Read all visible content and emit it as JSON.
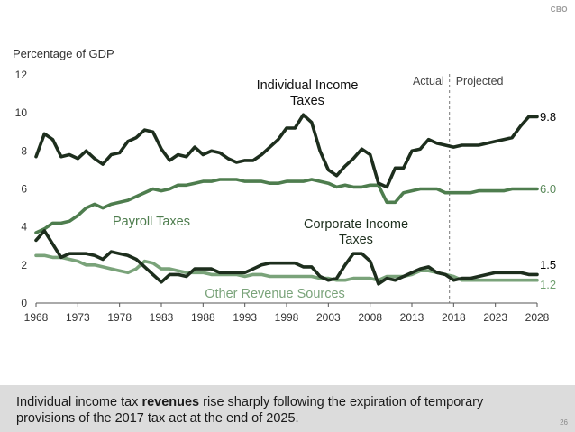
{
  "logo": "CBO",
  "page_number": "26",
  "caption": {
    "before": "Individual income tax ",
    "bold": "revenues",
    "after": " rise sharply following the expiration of temporary provisions of the 2017 tax act at the end of 2025."
  },
  "chart_data": {
    "type": "line",
    "ylabel": "Percentage of GDP",
    "xlim": [
      1968,
      2028
    ],
    "ylim": [
      0,
      12
    ],
    "yticks": [
      0,
      2,
      4,
      6,
      8,
      10,
      12
    ],
    "xticks": [
      1968,
      1973,
      1978,
      1983,
      1988,
      1993,
      1998,
      2003,
      2008,
      2013,
      2018,
      2023,
      2028
    ],
    "divider": {
      "year": 2017.5,
      "left_label": "Actual",
      "right_label": "Projected"
    },
    "x": [
      1968,
      1969,
      1970,
      1971,
      1972,
      1973,
      1974,
      1975,
      1976,
      1977,
      1978,
      1979,
      1980,
      1981,
      1982,
      1983,
      1984,
      1985,
      1986,
      1987,
      1988,
      1989,
      1990,
      1991,
      1992,
      1993,
      1994,
      1995,
      1996,
      1997,
      1998,
      1999,
      2000,
      2001,
      2002,
      2003,
      2004,
      2005,
      2006,
      2007,
      2008,
      2009,
      2010,
      2011,
      2012,
      2013,
      2014,
      2015,
      2016,
      2017,
      2018,
      2019,
      2020,
      2021,
      2022,
      2023,
      2024,
      2025,
      2026,
      2027,
      2028
    ],
    "series": [
      {
        "name": "Individual Income Taxes",
        "label_lines": [
          "Individual Income",
          "Taxes"
        ],
        "end_label": "9.8",
        "color": "#1d2e1d",
        "values": [
          7.7,
          8.9,
          8.6,
          7.7,
          7.8,
          7.6,
          8.0,
          7.6,
          7.3,
          7.8,
          7.9,
          8.5,
          8.7,
          9.1,
          9.0,
          8.1,
          7.5,
          7.8,
          7.7,
          8.2,
          7.8,
          8.0,
          7.9,
          7.6,
          7.4,
          7.5,
          7.5,
          7.8,
          8.2,
          8.6,
          9.2,
          9.2,
          9.9,
          9.5,
          8.0,
          7.0,
          6.7,
          7.2,
          7.6,
          8.1,
          7.8,
          6.3,
          6.1,
          7.1,
          7.1,
          8.0,
          8.1,
          8.6,
          8.4,
          8.3,
          8.2,
          8.3,
          8.3,
          8.3,
          8.4,
          8.5,
          8.6,
          8.7,
          9.3,
          9.8,
          9.8
        ]
      },
      {
        "name": "Payroll Taxes",
        "label_lines": [
          "Payroll Taxes"
        ],
        "end_label": "6.0",
        "color": "#4e7d4e",
        "values": [
          3.7,
          3.9,
          4.2,
          4.2,
          4.3,
          4.6,
          5.0,
          5.2,
          5.0,
          5.2,
          5.3,
          5.4,
          5.6,
          5.8,
          6.0,
          5.9,
          6.0,
          6.2,
          6.2,
          6.3,
          6.4,
          6.4,
          6.5,
          6.5,
          6.5,
          6.4,
          6.4,
          6.4,
          6.3,
          6.3,
          6.4,
          6.4,
          6.4,
          6.5,
          6.4,
          6.3,
          6.1,
          6.2,
          6.1,
          6.1,
          6.2,
          6.2,
          5.3,
          5.3,
          5.8,
          5.9,
          6.0,
          6.0,
          6.0,
          5.8,
          5.8,
          5.8,
          5.8,
          5.9,
          5.9,
          5.9,
          5.9,
          6.0,
          6.0,
          6.0,
          6.0
        ]
      },
      {
        "name": "Corporate Income Taxes",
        "label_lines": [
          "Corporate Income",
          "Taxes"
        ],
        "end_label": "1.5",
        "color": "#1d2e1d",
        "values": [
          3.3,
          3.8,
          3.1,
          2.4,
          2.6,
          2.6,
          2.6,
          2.5,
          2.3,
          2.7,
          2.6,
          2.5,
          2.3,
          1.9,
          1.5,
          1.1,
          1.5,
          1.5,
          1.4,
          1.8,
          1.8,
          1.8,
          1.6,
          1.6,
          1.6,
          1.6,
          1.8,
          2.0,
          2.1,
          2.1,
          2.1,
          2.1,
          1.9,
          1.9,
          1.4,
          1.2,
          1.3,
          2.0,
          2.6,
          2.6,
          2.2,
          1.0,
          1.3,
          1.2,
          1.4,
          1.6,
          1.8,
          1.9,
          1.6,
          1.5,
          1.2,
          1.3,
          1.3,
          1.4,
          1.5,
          1.6,
          1.6,
          1.6,
          1.6,
          1.5,
          1.5
        ]
      },
      {
        "name": "Other Revenue Sources",
        "label_lines": [
          "Other Revenue Sources"
        ],
        "end_label": "1.2",
        "color": "#7aa37a",
        "values": [
          2.5,
          2.5,
          2.4,
          2.4,
          2.3,
          2.2,
          2.0,
          2.0,
          1.9,
          1.8,
          1.7,
          1.6,
          1.8,
          2.2,
          2.1,
          1.8,
          1.8,
          1.7,
          1.6,
          1.6,
          1.6,
          1.5,
          1.5,
          1.5,
          1.5,
          1.4,
          1.5,
          1.5,
          1.4,
          1.4,
          1.4,
          1.4,
          1.4,
          1.4,
          1.3,
          1.3,
          1.2,
          1.2,
          1.3,
          1.3,
          1.3,
          1.2,
          1.4,
          1.4,
          1.4,
          1.5,
          1.7,
          1.7,
          1.6,
          1.5,
          1.4,
          1.2,
          1.2,
          1.2,
          1.2,
          1.2,
          1.2,
          1.2,
          1.2,
          1.2,
          1.2
        ]
      }
    ]
  }
}
